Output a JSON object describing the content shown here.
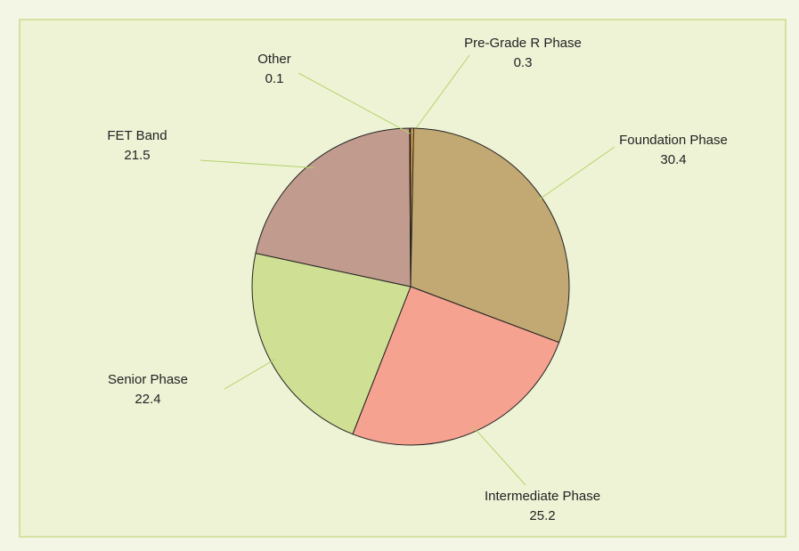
{
  "chart_data": {
    "type": "pie",
    "categories": [
      "Pre-Grade R Phase",
      "Foundation Phase",
      "Intermediate Phase",
      "Senior Phase",
      "FET Band",
      "Other"
    ],
    "values": [
      0.3,
      30.4,
      25.2,
      22.4,
      21.5,
      0.1
    ],
    "colors": [
      "#f0a844",
      "#c2a872",
      "#f5a290",
      "#cfe094",
      "#c19b8e",
      "#a6cce2"
    ]
  }
}
